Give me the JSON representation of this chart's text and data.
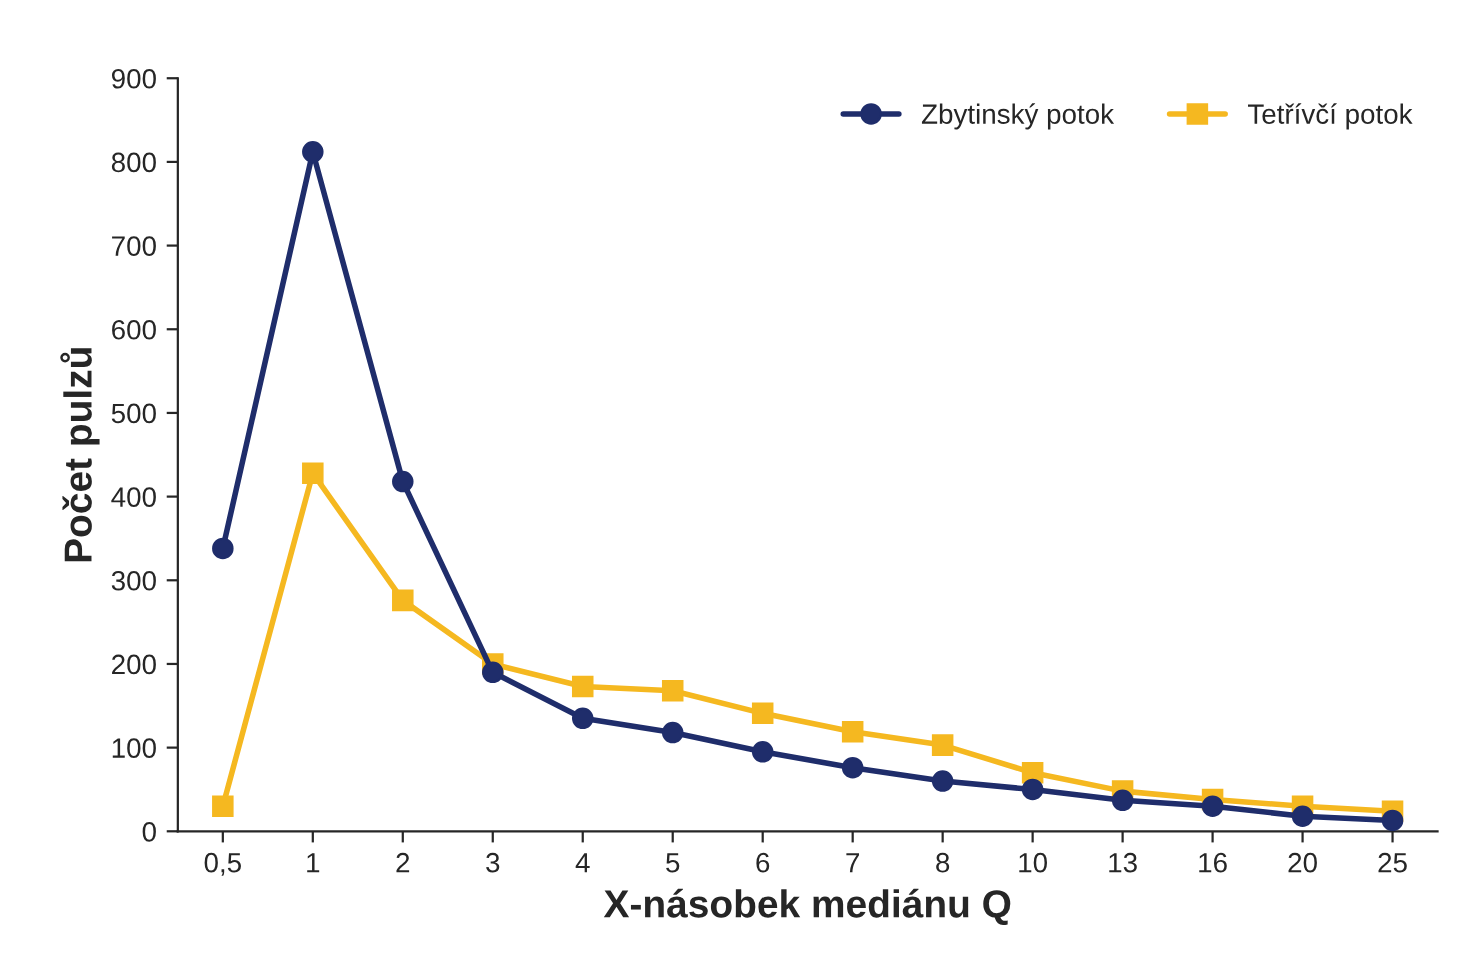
{
  "chart_data": {
    "type": "line",
    "xlabel": "X-násobek mediánu Q",
    "ylabel": "Počet pulzů",
    "categories": [
      "0,5",
      "1",
      "2",
      "3",
      "4",
      "5",
      "6",
      "7",
      "8",
      "10",
      "13",
      "16",
      "20",
      "25"
    ],
    "series": [
      {
        "name": "Zbytinský potok",
        "color": "#1f2d6b",
        "marker": "circle",
        "values": [
          338,
          812,
          418,
          190,
          135,
          118,
          95,
          76,
          60,
          50,
          37,
          30,
          18,
          13
        ]
      },
      {
        "name": "Tetřívčí potok",
        "color": "#f5b820",
        "marker": "square",
        "values": [
          30,
          428,
          276,
          200,
          173,
          168,
          141,
          119,
          103,
          70,
          48,
          38,
          30,
          24
        ]
      }
    ],
    "ylim": [
      0,
      900
    ],
    "yticks": [
      0,
      100,
      200,
      300,
      400,
      500,
      600,
      700,
      800,
      900
    ],
    "grid": false,
    "legend": "top right",
    "line_style": "solid"
  }
}
